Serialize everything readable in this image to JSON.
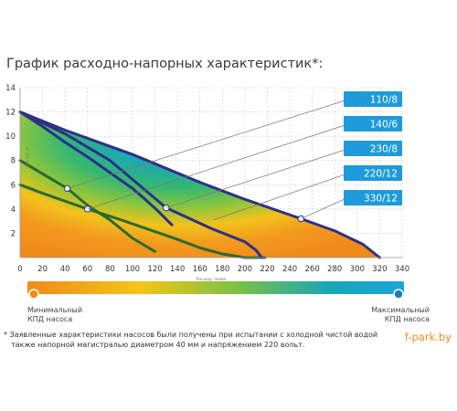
{
  "title": "График расходно-напорных характеристик*:",
  "footnote": {
    "line1": "* Заявленные характеристики насосов были получены при испытании с холодной чистой водой",
    "line2": "также напорной магистралью диаметром 40 мм и напряжением 220 вольт."
  },
  "brand": "f-park.by",
  "efficiency_bar": {
    "min_label_line1": "Минимальный",
    "min_label_line2": "КПД насоса",
    "max_label_line1": "Максимальный",
    "max_label_line2": "КПД насоса",
    "colors": [
      "#f08a1c",
      "#f5c518",
      "#7dc242",
      "#18a7b5",
      "#1aa3dd"
    ]
  },
  "chart_data": {
    "type": "line",
    "title": "График расходно-напорных характеристик*:",
    "xlabel": "Расход, л/мин",
    "ylabel": "Напор, м",
    "xlim": [
      0,
      340
    ],
    "ylim": [
      0,
      14
    ],
    "x_ticks": [
      0,
      20,
      40,
      60,
      80,
      100,
      120,
      140,
      160,
      180,
      200,
      220,
      240,
      260,
      280,
      300,
      320,
      340
    ],
    "y_ticks": [
      2,
      4,
      6,
      8,
      10,
      12,
      14
    ],
    "grid": true,
    "colors": {
      "heatmap_low": "#f08a1c",
      "heatmap_high": "#1f97cf",
      "callout": "#1e9bd8"
    },
    "series": [
      {
        "name": "110/8",
        "color": "#2e2f88",
        "x": [
          0,
          20,
          40,
          60,
          80,
          100,
          110,
          122,
          135
        ],
        "y": [
          12.0,
          10.8,
          9.5,
          8.3,
          7.0,
          5.7,
          4.9,
          3.9,
          2.7
        ],
        "marker": null
      },
      {
        "name": "140/6",
        "color": "#2a6a30",
        "x": [
          0,
          20,
          42,
          60,
          80,
          100,
          120
        ],
        "y": [
          8.0,
          6.9,
          5.7,
          4.3,
          3.1,
          1.6,
          0.5
        ],
        "marker": [
          42,
          5.7
        ]
      },
      {
        "name": "230/8",
        "color": "#2a6a30",
        "x": [
          0,
          20,
          60,
          90,
          115,
          140,
          160,
          180,
          200,
          218
        ],
        "y": [
          6.0,
          5.3,
          4.0,
          3.1,
          2.3,
          1.5,
          0.8,
          0.3,
          0.0,
          0.0
        ],
        "marker": [
          60,
          4.0
        ]
      },
      {
        "name": "220/12",
        "color": "#2e2f88",
        "x": [
          0,
          40,
          80,
          130,
          170,
          200,
          210,
          215
        ],
        "y": [
          12.0,
          10.2,
          8.0,
          4.1,
          2.4,
          1.3,
          0.6,
          0.0
        ],
        "marker": [
          130,
          4.1
        ]
      },
      {
        "name": "330/12",
        "color": "#2e2f88",
        "x": [
          0,
          40,
          100,
          160,
          200,
          250,
          280,
          305,
          320
        ],
        "y": [
          12.0,
          10.5,
          8.5,
          6.2,
          4.8,
          3.2,
          2.2,
          1.1,
          0.0
        ],
        "marker": [
          250,
          3.2
        ]
      }
    ],
    "callouts": [
      {
        "label": "110/8",
        "target": [
          42,
          5.7
        ]
      },
      {
        "label": "140/6",
        "target": [
          60,
          4.0
        ]
      },
      {
        "label": "230/8",
        "target": [
          130,
          4.1
        ]
      },
      {
        "label": "220/12",
        "target": [
          172,
          3.1
        ]
      },
      {
        "label": "330/12",
        "target": [
          250,
          3.2
        ]
      }
    ]
  }
}
